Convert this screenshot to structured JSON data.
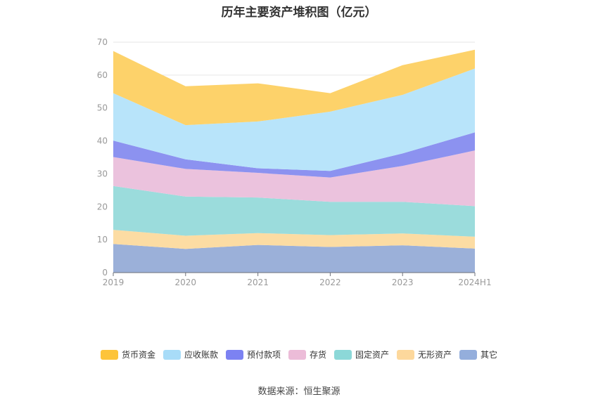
{
  "chart_data": {
    "type": "area",
    "stacked": true,
    "title": "历年主要资产堆积图（亿元）",
    "source": "数据来源：恒生聚源",
    "categories": [
      "2019",
      "2020",
      "2021",
      "2022",
      "2023",
      "2024H1"
    ],
    "ylim": [
      0,
      70
    ],
    "yticks": [
      0,
      10,
      20,
      30,
      40,
      50,
      60,
      70
    ],
    "grid": true,
    "legend_position": "bottom",
    "series": [
      {
        "name": "其它",
        "color": "#9bb0d9",
        "values": [
          8.7,
          7.2,
          8.4,
          7.8,
          8.3,
          7.3
        ]
      },
      {
        "name": "无形资产",
        "color": "#fcdca3",
        "values": [
          4.3,
          4.0,
          3.6,
          3.6,
          3.6,
          3.6
        ]
      },
      {
        "name": "固定资产",
        "color": "#9bdcdc",
        "values": [
          13.3,
          11.9,
          10.8,
          10.1,
          9.6,
          9.3
        ]
      },
      {
        "name": "存货",
        "color": "#ebc2dd",
        "values": [
          8.8,
          8.4,
          7.5,
          7.4,
          10.9,
          16.9
        ]
      },
      {
        "name": "预付款项",
        "color": "#8c92f0",
        "values": [
          5.0,
          2.9,
          1.4,
          2.0,
          3.8,
          5.5
        ]
      },
      {
        "name": "应收账款",
        "color": "#b8e4fa",
        "values": [
          14.4,
          10.4,
          14.2,
          18.0,
          17.8,
          19.4
        ]
      },
      {
        "name": "货币资金",
        "color": "#fdd26a",
        "values": [
          12.8,
          11.8,
          11.6,
          5.6,
          9.0,
          5.7
        ]
      }
    ],
    "legend": [
      {
        "name": "货币资金",
        "color": "#fdc43a"
      },
      {
        "name": "应收账款",
        "color": "#a8dcf8"
      },
      {
        "name": "预付款项",
        "color": "#7c82f2"
      },
      {
        "name": "存货",
        "color": "#ecbcd8"
      },
      {
        "name": "固定资产",
        "color": "#8cd8d8"
      },
      {
        "name": "无形资产",
        "color": "#fdd89c"
      },
      {
        "name": "其它",
        "color": "#94aedc"
      }
    ]
  }
}
